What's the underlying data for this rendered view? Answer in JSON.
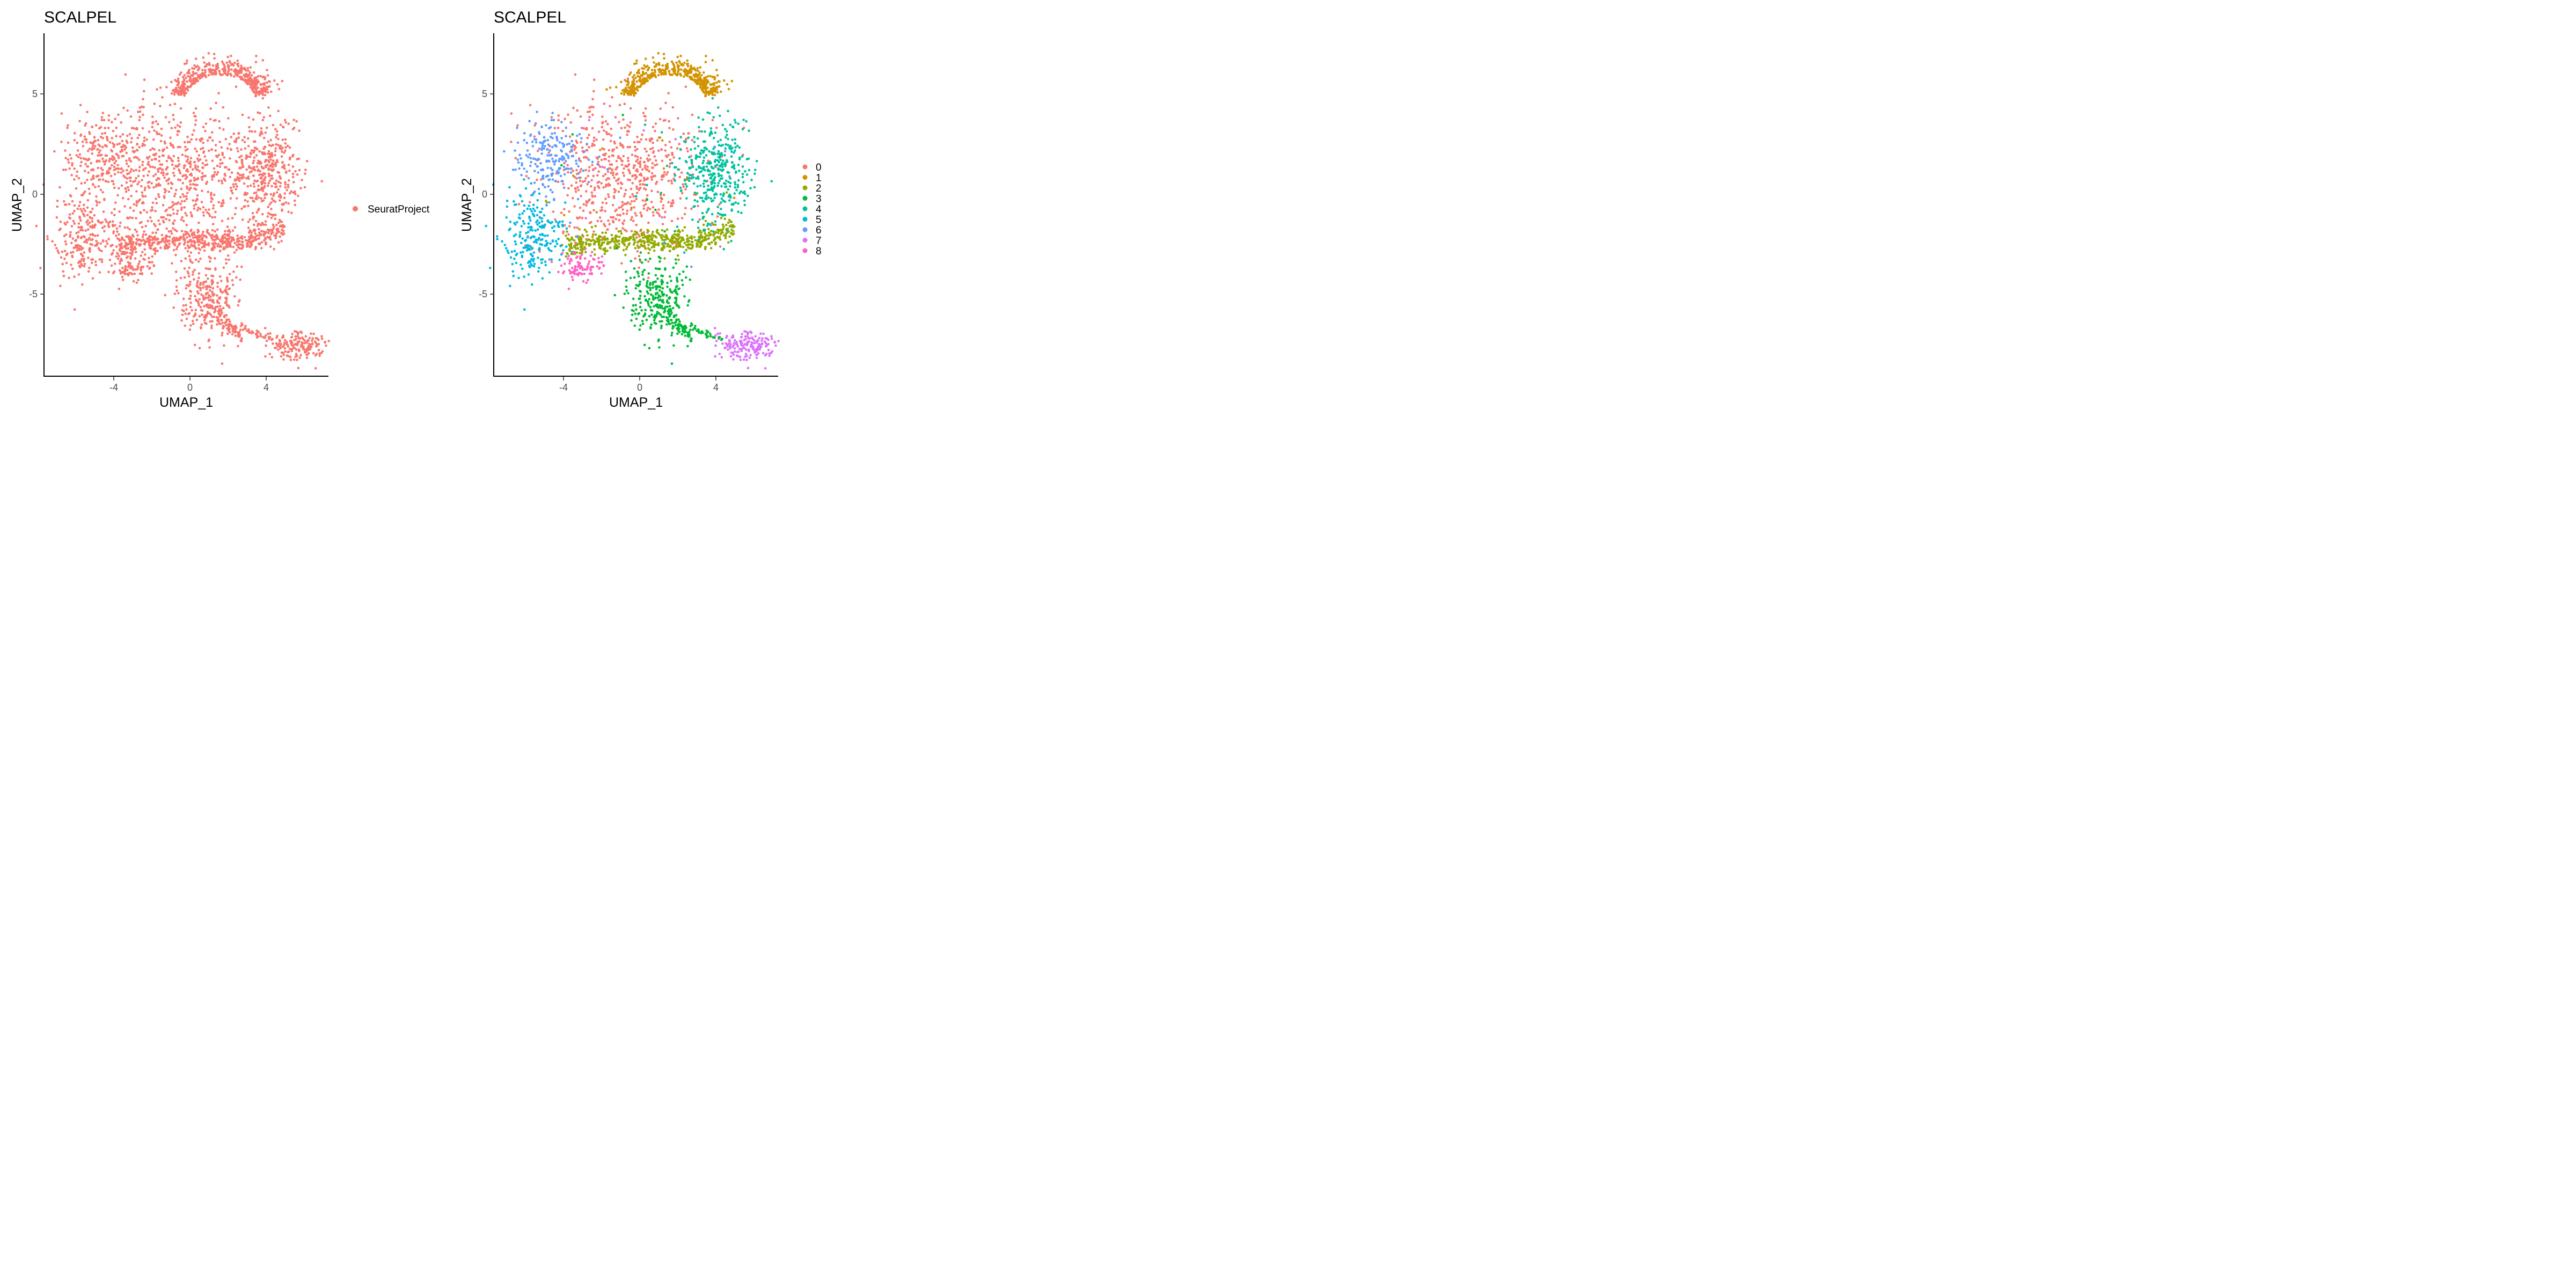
{
  "chart_data": [
    {
      "type": "scatter",
      "title": "SCALPEL",
      "xlabel": "UMAP_1",
      "ylabel": "UMAP_2",
      "xlim": [
        -7.8,
        7.3
      ],
      "ylim": [
        -9.0,
        8.0
      ],
      "xticks": [
        -4,
        0,
        4
      ],
      "yticks": [
        -5,
        0,
        5
      ],
      "grid": false,
      "legend_position": "right",
      "point_color_mode": "single",
      "series": [
        {
          "name": "SeuratProject",
          "color": "#F8766D"
        }
      ]
    },
    {
      "type": "scatter",
      "title": "SCALPEL",
      "xlabel": "UMAP_1",
      "ylabel": "UMAP_2",
      "xlim": [
        -7.8,
        7.3
      ],
      "ylim": [
        -9.0,
        8.0
      ],
      "xticks": [
        -4,
        0,
        4
      ],
      "yticks": [
        -5,
        0,
        5
      ],
      "grid": false,
      "legend_position": "right",
      "point_color_mode": "by_cluster",
      "series": [
        {
          "name": "0",
          "color": "#F8766D",
          "centroid": [
            -1.0,
            1.0
          ],
          "spread": [
            2.2,
            1.8
          ]
        },
        {
          "name": "1",
          "color": "#D39200",
          "centroid": [
            1.8,
            5.3
          ],
          "spread": [
            1.5,
            1.0
          ]
        },
        {
          "name": "2",
          "color": "#93AA00",
          "centroid": [
            1.8,
            -2.0
          ],
          "spread": [
            3.2,
            0.4
          ]
        },
        {
          "name": "3",
          "color": "#00BA38",
          "centroid": [
            0.8,
            -5.0
          ],
          "spread": [
            0.8,
            1.0
          ]
        },
        {
          "name": "4",
          "color": "#00C19F",
          "centroid": [
            3.9,
            1.2
          ],
          "spread": [
            0.9,
            1.3
          ]
        },
        {
          "name": "5",
          "color": "#00B9E3",
          "centroid": [
            -5.6,
            -2.0
          ],
          "spread": [
            0.8,
            1.1
          ]
        },
        {
          "name": "6",
          "color": "#619CFF",
          "centroid": [
            -4.6,
            2.0
          ],
          "spread": [
            0.9,
            0.9
          ]
        },
        {
          "name": "7",
          "color": "#DB72FB",
          "centroid": [
            5.5,
            -7.6
          ],
          "spread": [
            0.7,
            0.4
          ]
        },
        {
          "name": "8",
          "color": "#FF61C3",
          "centroid": [
            -3.0,
            -3.6
          ],
          "spread": [
            0.6,
            0.4
          ]
        }
      ]
    }
  ]
}
